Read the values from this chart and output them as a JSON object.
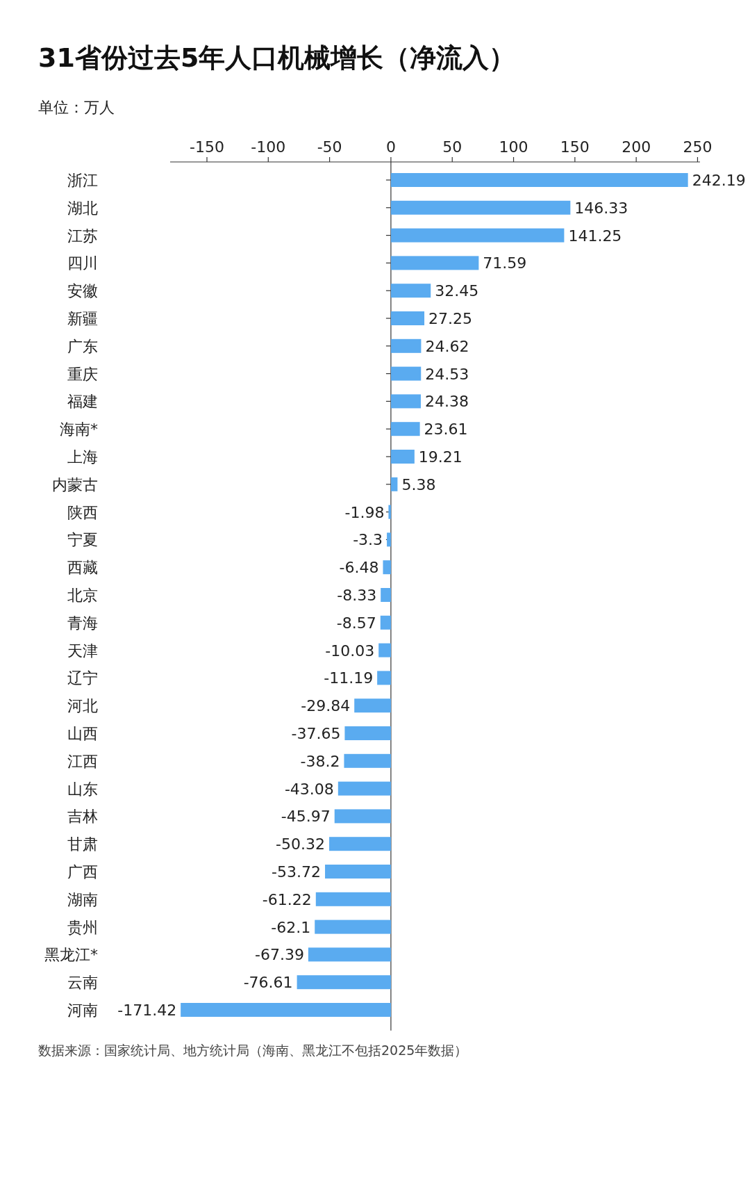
{
  "chart_data": {
    "type": "bar",
    "orientation": "horizontal",
    "title": "31省份过去5年人口机械增长（净流入）",
    "subtitle": "单位：万人",
    "categories": [
      "浙江",
      "湖北",
      "江苏",
      "四川",
      "安徽",
      "新疆",
      "广东",
      "重庆",
      "福建",
      "海南*",
      "上海",
      "内蒙古",
      "陕西",
      "宁夏",
      "西藏",
      "北京",
      "青海",
      "天津",
      "辽宁",
      "河北",
      "山西",
      "江西",
      "山东",
      "吉林",
      "甘肃",
      "广西",
      "湖南",
      "贵州",
      "黑龙江*",
      "云南",
      "河南"
    ],
    "values": [
      242.19,
      146.33,
      141.25,
      71.59,
      32.45,
      27.25,
      24.62,
      24.53,
      24.38,
      23.61,
      19.21,
      5.38,
      -1.98,
      -3.3,
      -6.48,
      -8.33,
      -8.57,
      -10.03,
      -11.19,
      -29.84,
      -37.65,
      -38.2,
      -43.08,
      -45.97,
      -50.32,
      -53.72,
      -61.22,
      -62.1,
      -67.39,
      -76.61,
      -171.42
    ],
    "color": "#5aabf0",
    "xlim": [
      -180,
      252
    ],
    "xticks": [
      -150,
      -100,
      -50,
      0,
      50,
      100,
      150,
      200,
      250
    ],
    "data_labels": true,
    "annotations": [
      "数据来源：国家统计局、地方统计局（海南、黑龙江不包括2025年数据）"
    ]
  }
}
